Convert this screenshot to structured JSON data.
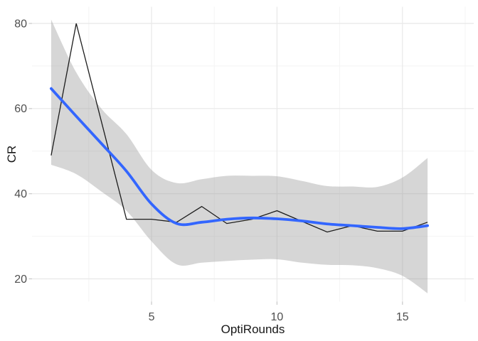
{
  "figure": {
    "background": "#ffffff"
  },
  "chart_data": {
    "type": "line",
    "title": "",
    "xlabel": "OptiRounds",
    "ylabel": "CR",
    "x": [
      1,
      2,
      3,
      4,
      5,
      6,
      7,
      8,
      9,
      10,
      11,
      12,
      13,
      14,
      15,
      16
    ],
    "series": [
      {
        "name": "raw-cr-line",
        "color": "#1c1c1c",
        "values": [
          49,
          80,
          57,
          34,
          34,
          33.3,
          37,
          33,
          34,
          36,
          33.5,
          31,
          32.5,
          31.2,
          31.2,
          33.3
        ]
      },
      {
        "name": "loess-smooth-line",
        "color": "#3366ff",
        "values": [
          64.7,
          58.2,
          51.8,
          45.3,
          37.6,
          33,
          33.3,
          34,
          34.3,
          34.1,
          33.6,
          32.9,
          32.5,
          32.1,
          31.8,
          32.5
        ]
      }
    ],
    "ci_band": {
      "name": "confidence-interval-band",
      "fill": "#999999",
      "fill_opacity": 0.4,
      "upper": [
        80.9,
        68.5,
        60,
        54,
        45.6,
        42.5,
        43.4,
        44.2,
        44.2,
        44.1,
        43,
        41.8,
        41.7,
        41.6,
        43.8,
        48.4
      ],
      "lower": [
        46.8,
        44.6,
        40.5,
        36,
        28.8,
        23.4,
        23.8,
        24.2,
        24.5,
        24.6,
        23.8,
        23.3,
        23.2,
        22.5,
        20.7,
        16.6
      ]
    },
    "xlim": [
      0.237,
      17.84
    ],
    "ylim": [
      14.66,
      83.92
    ],
    "x_ticks": {
      "major": [
        5,
        10,
        15
      ],
      "minor": [
        2.5,
        7.5,
        12.5,
        17.5
      ]
    },
    "y_ticks": {
      "major": [
        20,
        40,
        60,
        80
      ],
      "minor": [
        30,
        50,
        70
      ]
    },
    "grid": {
      "on": true,
      "major_color": "#e8e8e8",
      "minor_color": "#f4f4f4"
    },
    "axis": {
      "tick_color": "#c8c8c8",
      "tick_label_color": "#4e4e4e",
      "title_color": "#171717"
    },
    "legend": "none"
  }
}
